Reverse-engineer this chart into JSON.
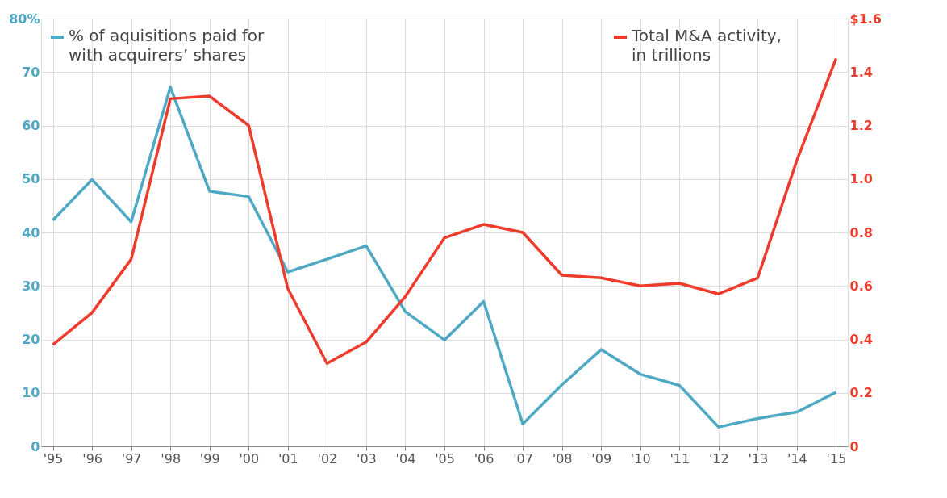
{
  "chart_data": {
    "type": "line",
    "categories": [
      "'95",
      "'96",
      "'97",
      "'98",
      "'99",
      "'00",
      "'01",
      "'02",
      "'03",
      "'04",
      "'05",
      "'06",
      "'07",
      "'08",
      "'09",
      "'10",
      "'11",
      "'12",
      "'13",
      "'14",
      "'15"
    ],
    "series": [
      {
        "name": "% of aquisitions paid for with acquirers’ shares",
        "color": "#4fa8c4",
        "values": [
          42.3,
          49.9,
          42,
          67.2,
          47.7,
          46.7,
          32.6,
          35,
          37.5,
          25.2,
          19.9,
          27.1,
          4.2,
          11.5,
          18.1,
          13.5,
          11.4,
          3.6,
          5.2,
          6.4,
          10.1
        ]
      },
      {
        "name": "Total M&A activity, in trillions",
        "color": "#ee3b2b",
        "axis": "y2",
        "values": [
          0.38,
          0.5,
          0.7,
          1.3,
          1.31,
          1.2,
          0.59,
          0.31,
          0.39,
          0.56,
          0.78,
          0.83,
          0.8,
          0.64,
          0.63,
          0.6,
          0.61,
          0.57,
          0.63,
          1.07,
          1.45
        ]
      }
    ],
    "ylim": [
      0,
      80
    ],
    "yticks": [
      0,
      10,
      20,
      30,
      40,
      50,
      60,
      70,
      {
        "value": 80,
        "label": "80%"
      }
    ],
    "y2lim": [
      0,
      1.6
    ],
    "y2ticks": [
      {
        "value": 0,
        "label": "0"
      },
      {
        "value": 0.2,
        "label": "0.2"
      },
      {
        "value": 0.4,
        "label": "0.4"
      },
      {
        "value": 0.6,
        "label": "0.6"
      },
      {
        "value": 0.8,
        "label": "0.8"
      },
      {
        "value": 1.0,
        "label": "1.0"
      },
      {
        "value": 1.2,
        "label": "1.2"
      },
      {
        "value": 1.4,
        "label": "1.4"
      },
      {
        "value": 1.6,
        "label": "$1.6"
      }
    ],
    "grid": true,
    "legend": "top",
    "marker": "none",
    "line_style": "solid"
  }
}
